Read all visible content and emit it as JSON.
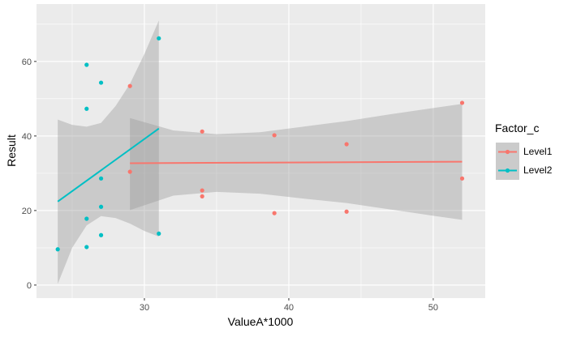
{
  "chart_data": {
    "type": "scatter",
    "title": "",
    "xlabel": "ValueA*1000",
    "ylabel": "Result",
    "xlim": [
      22.53,
      53.6
    ],
    "ylim": [
      -3.5,
      75.4
    ],
    "xticks": [
      30,
      40,
      50
    ],
    "xminor": [
      25,
      35,
      45
    ],
    "yticks": [
      0,
      20,
      40,
      60
    ],
    "yminor": [
      10,
      30,
      50,
      70
    ],
    "grid": true,
    "legend": {
      "title": "Factor_c",
      "placement": "right",
      "entries": [
        "Level1",
        "Level2"
      ]
    },
    "series": [
      {
        "name": "Level1",
        "color": "#F8766D",
        "points": [
          [
            29,
            53.4
          ],
          [
            29,
            30.4
          ],
          [
            34,
            41.2
          ],
          [
            34,
            25.4
          ],
          [
            34,
            23.8
          ],
          [
            39,
            40.2
          ],
          [
            39,
            19.3
          ],
          [
            44,
            37.8
          ],
          [
            44,
            19.7
          ],
          [
            52,
            48.9
          ],
          [
            52,
            28.6
          ]
        ],
        "fit": [
          [
            29,
            32.7
          ],
          [
            52,
            33.1
          ]
        ],
        "band": [
          [
            29,
            20.1,
            44.8
          ],
          [
            32,
            24,
            41.5
          ],
          [
            35,
            25,
            40.5
          ],
          [
            38,
            24.5,
            41
          ],
          [
            41,
            23.2,
            42.5
          ],
          [
            44,
            22,
            44
          ],
          [
            47,
            20.3,
            45.8
          ],
          [
            50,
            18.6,
            47.5
          ],
          [
            52,
            17.5,
            48.6
          ]
        ]
      },
      {
        "name": "Level2",
        "color": "#00BFC4",
        "points": [
          [
            24,
            9.6
          ],
          [
            26,
            59.1
          ],
          [
            26,
            47.3
          ],
          [
            27,
            54.3
          ],
          [
            27,
            28.6
          ],
          [
            27,
            21.0
          ],
          [
            26,
            17.8
          ],
          [
            26,
            10.2
          ],
          [
            27,
            13.4
          ],
          [
            31,
            66.2
          ],
          [
            31,
            13.8
          ]
        ],
        "fit": [
          [
            24,
            22.4
          ],
          [
            31,
            42.0
          ]
        ],
        "band": [
          [
            24,
            0.3,
            44.4
          ],
          [
            25,
            10,
            43
          ],
          [
            26,
            16,
            42.5
          ],
          [
            27,
            18.5,
            43.5
          ],
          [
            28,
            18,
            48
          ],
          [
            29,
            16.5,
            54
          ],
          [
            30,
            14.5,
            62
          ],
          [
            31,
            13,
            71
          ]
        ]
      }
    ]
  }
}
